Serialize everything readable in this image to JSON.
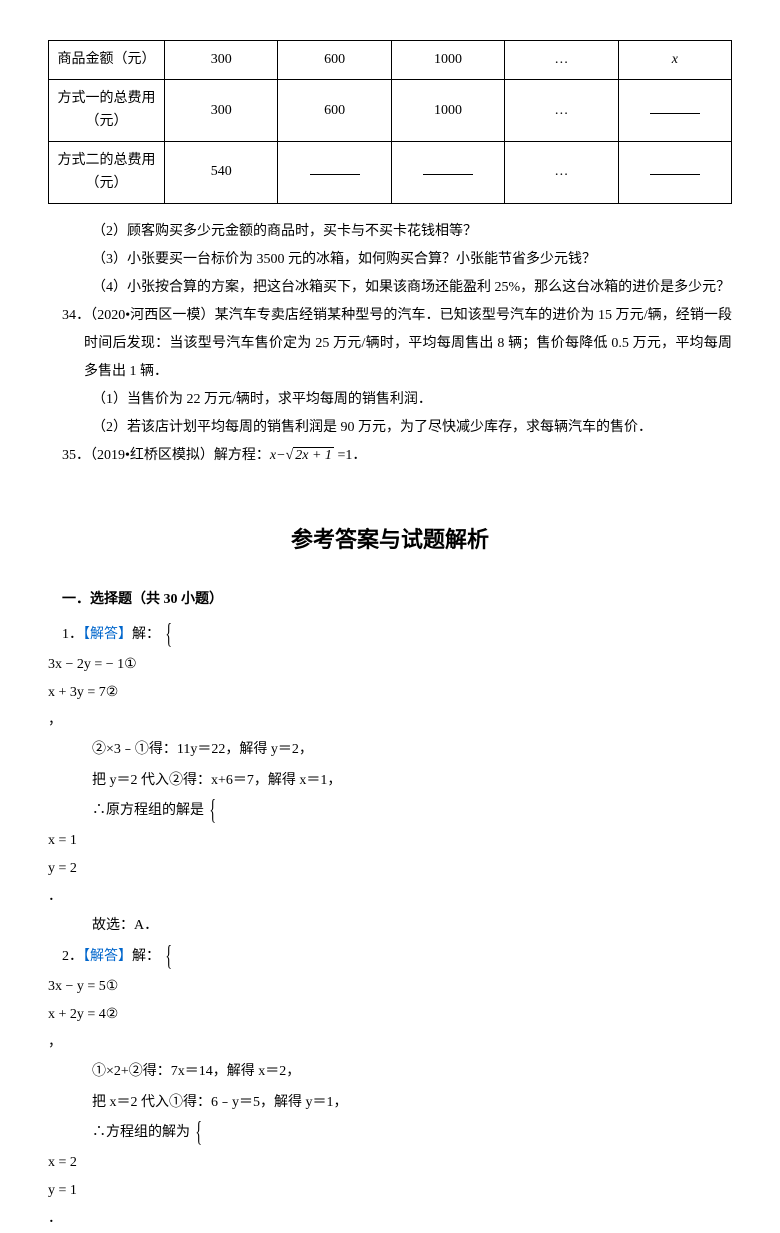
{
  "table": {
    "rows": [
      {
        "header": "商品金额（元）",
        "c1": "300",
        "c2": "600",
        "c3": "1000",
        "c4": "…",
        "c5_text": "x",
        "c5_italic": true
      },
      {
        "header": "方式一的总费用（元）",
        "c1": "300",
        "c2": "600",
        "c3": "1000",
        "c4": "…",
        "c5_blank": true
      },
      {
        "header": "方式二的总费用（元）",
        "c1": "540",
        "c2_blank": true,
        "c3_blank": true,
        "c4": "…",
        "c5_blank": true
      }
    ]
  },
  "q2": "（2）顾客购买多少元金额的商品时，买卡与不买卡花钱相等？",
  "q3": "（3）小张要买一台标价为 3500 元的冰箱，如何购买合算？小张能节省多少元钱？",
  "q4": "（4）小张按合算的方案，把这台冰箱买下，如果该商场还能盈利 25%，那么这台冰箱的进价是多少元？",
  "p34a": "34．（2020•河西区一模）某汽车专卖店经销某种型号的汽车．已知该型号汽车的进价为 15 万元/辆，经销一段时间后发现：当该型号汽车售价定为 25 万元/辆时，平均每周售出 8 辆；售价每降低 0.5 万元，平均每周多售出 1 辆．",
  "p34_1": "（1）当售价为 22 万元/辆时，求平均每周的销售利润．",
  "p34_2": "（2）若该店计划平均每周的销售利润是 90 万元，为了尽快减少库存，求每辆汽车的售价．",
  "p35_prefix": "35．（2019•红桥区模拟）解方程：",
  "p35_math": "x−",
  "p35_sqrt": "2x + 1",
  "p35_suffix": " =1．",
  "answers_title": "参考答案与试题解析",
  "section1": "一．选择题（共 30 小题）",
  "ans": {
    "label": "【解答】",
    "sol": "解：",
    "sys1": {
      "l1": "3x − 2y = − 1①",
      "l2": "x + 3y = 7②"
    },
    "s1a": "②×3﹣①得：11y＝22，解得 y＝2，",
    "s1b": "把 y＝2 代入②得：x+6＝7，解得 x＝1，",
    "s1c_prefix": "∴原方程组的解是",
    "sys1r": {
      "l1": "x = 1",
      "l2": "y = 2"
    },
    "s1d": "故选：A．",
    "sys2": {
      "l1": "3x − y = 5①",
      "l2": "x + 2y = 4②"
    },
    "s2a": "①×2+②得：7x＝14，解得 x＝2，",
    "s2b": "把 x＝2 代入①得：6﹣y＝5，解得 y＝1，",
    "s2c_prefix": "∴方程组的解为",
    "sys2r": {
      "l1": "x = 2",
      "l2": "y = 1"
    }
  },
  "style": {
    "link_color": "#0066cc"
  }
}
